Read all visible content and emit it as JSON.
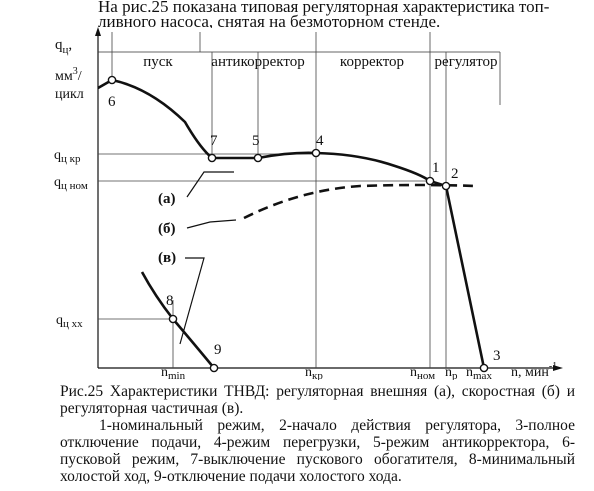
{
  "intro": {
    "line1": "На рис.25 показана типовая регуляторная характеристика топ-",
    "line2": "ливного насоса, снятая на безмоторном стенде."
  },
  "figure": {
    "y_axis_label": [
      "q",
      "ц",
      ",",
      "мм",
      "3",
      "/",
      "цикл"
    ],
    "y_ticks": [
      {
        "base": "q",
        "sub": "ц кр"
      },
      {
        "base": "q",
        "sub": "ц ном"
      },
      {
        "base": "q",
        "sub": "ц хх"
      }
    ],
    "x_ticks": [
      {
        "base": "n",
        "sub": "min"
      },
      {
        "base": "n",
        "sub": "кр"
      },
      {
        "base": "n",
        "sub": "ном"
      },
      {
        "base": "n",
        "sub": "р"
      },
      {
        "base": "n",
        "sub": "max"
      }
    ],
    "x_axis_label": {
      "text": "n, мин",
      "sup": "-1"
    },
    "zones": [
      "пуск",
      "антикорректор",
      "корректор",
      "регулятор"
    ],
    "point_labels": [
      "1",
      "2",
      "3",
      "4",
      "5",
      "6",
      "7",
      "8",
      "9"
    ],
    "curve_labels": [
      "(а)",
      "(б)",
      "(в)"
    ]
  },
  "caption": {
    "title": "Рис.25 Характеристики ТНВД: регуляторная внешняя (а), скоростная (б) и регуляторная частичная (в).",
    "legend": "1-номинальный режим, 2-начало действия регулятора, 3-полное отключение подачи, 4-режим перегрузки, 5-режим антикорректора, 6-пусковой режим, 7-выключение пускового обогатителя, 8-минимальный холостой ход, 9-отключение подачи холостого хода."
  }
}
